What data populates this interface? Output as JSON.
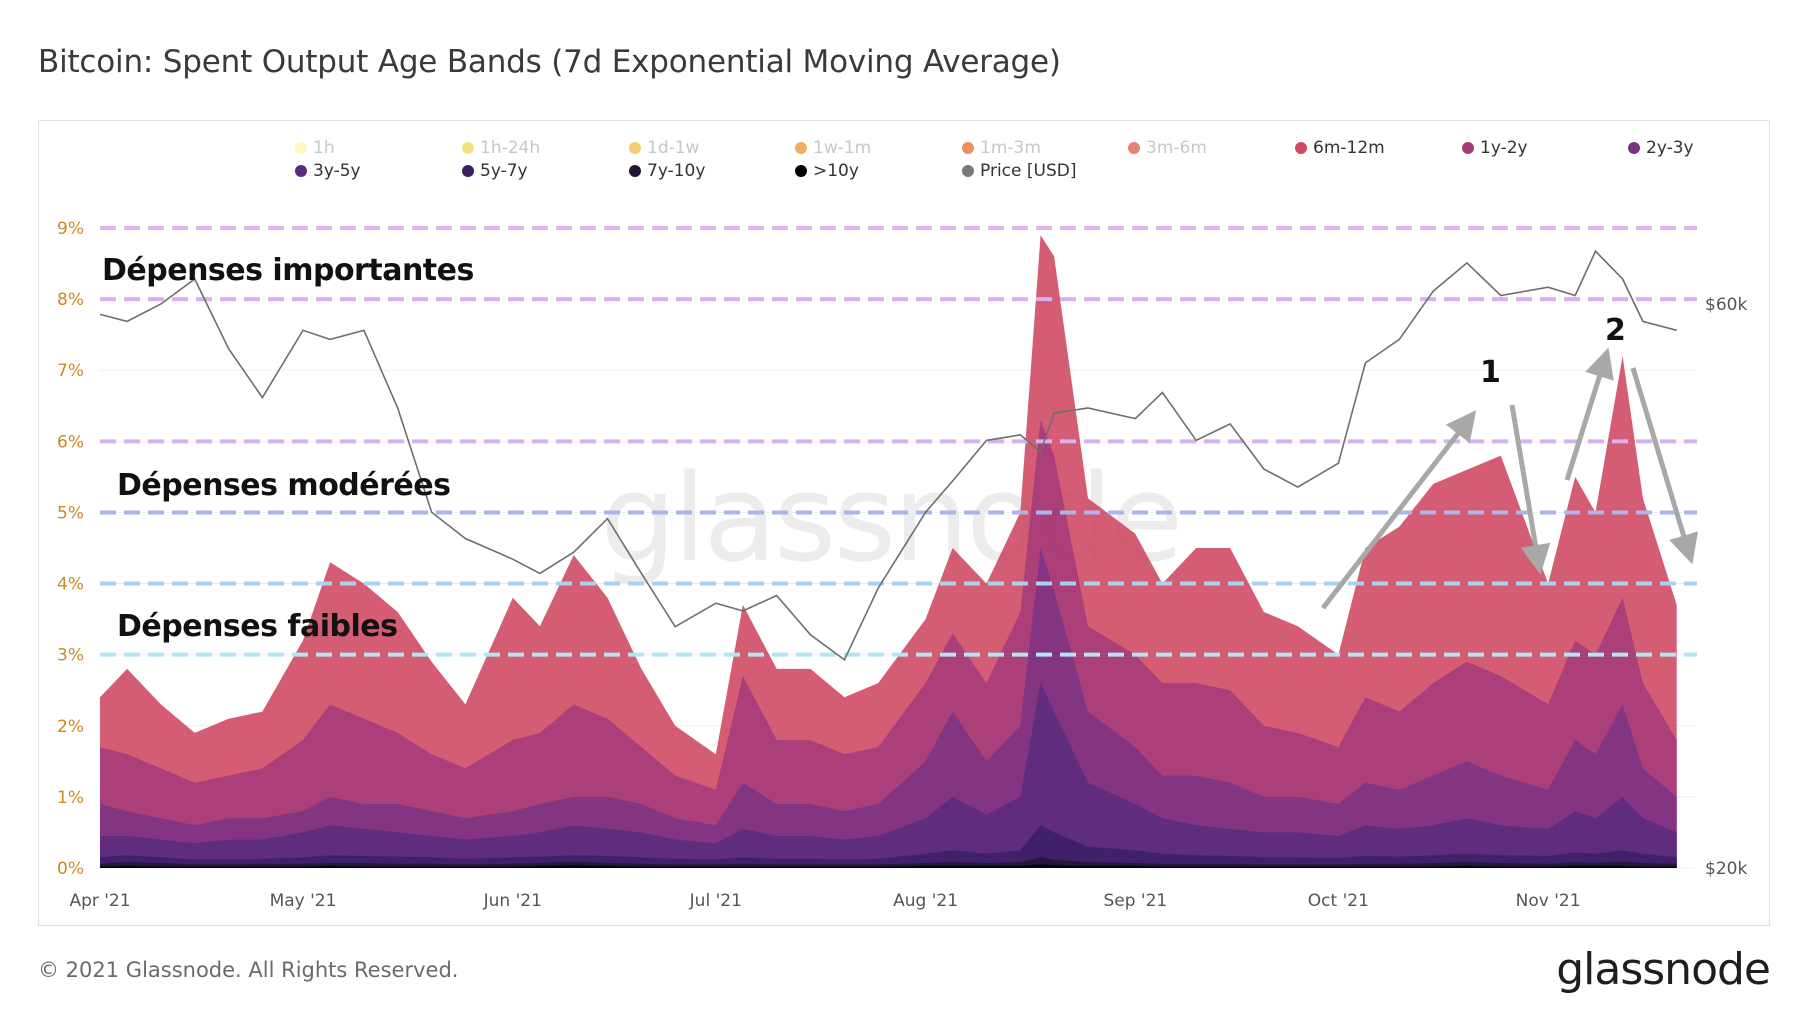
{
  "header": {
    "title": "Bitcoin: Spent Output Age Bands (7d Exponential Moving Average)"
  },
  "footer": {
    "copyright": "© 2021 Glassnode. All Rights Reserved.",
    "logo": "glassnode",
    "watermark": "glassnode"
  },
  "legend": [
    {
      "label": "1h",
      "color": "#fff2a8",
      "active": false
    },
    {
      "label": "1h-24h",
      "color": "#f7d64a",
      "active": false
    },
    {
      "label": "1d-1w",
      "color": "#f2bd3a",
      "active": false
    },
    {
      "label": "1w-1m",
      "color": "#e8922c",
      "active": false
    },
    {
      "label": "1m-3m",
      "color": "#e4682b",
      "active": false
    },
    {
      "label": "3m-6m",
      "color": "#e05a3d",
      "active": false
    },
    {
      "label": "6m-12m",
      "color": "#cf4a64",
      "active": true
    },
    {
      "label": "1y-2y",
      "color": "#a33a7a",
      "active": true
    },
    {
      "label": "2y-3y",
      "color": "#7b3484",
      "active": true
    },
    {
      "label": "3y-5y",
      "color": "#5a2a7c",
      "active": true
    },
    {
      "label": "5y-7y",
      "color": "#3c1e66",
      "active": true
    },
    {
      "label": "7y-10y",
      "color": "#221535",
      "active": true
    },
    {
      "label": ">10y",
      "color": "#000000",
      "active": true
    },
    {
      "label": "Price [USD]",
      "color": "#7a7a7a",
      "active": true
    }
  ],
  "annotations": {
    "high": "Dépenses importantes",
    "moderate": "Dépenses modérées",
    "low": "Dépenses faibles",
    "marker1": "1",
    "marker2": "2"
  },
  "chart_data": {
    "type": "area",
    "title": "Bitcoin: Spent Output Age Bands (7d Exponential Moving Average)",
    "x_ticks": [
      "Apr '21",
      "May '21",
      "Jun '21",
      "Jul '21",
      "Aug '21",
      "Sep '21",
      "Oct '21",
      "Nov '21"
    ],
    "y_left_ticks": [
      "0%",
      "1%",
      "2%",
      "3%",
      "4%",
      "5%",
      "6%",
      "7%",
      "8%",
      "9%"
    ],
    "y_left_range": [
      0,
      9.2
    ],
    "y_right_ticks": [
      "$20k",
      "$60k"
    ],
    "y_right_scale": "log",
    "threshold_lines": [
      {
        "value": 3,
        "color": "#aee6f5"
      },
      {
        "value": 4,
        "color": "#a7d3ee"
      },
      {
        "value": 5,
        "color": "#aab4ee"
      },
      {
        "value": 6,
        "color": "#d4b3ee"
      },
      {
        "value": 8,
        "color": "#dcaeee"
      },
      {
        "value": 9,
        "color": "#e3b3ee"
      }
    ],
    "dates": [
      "2021-04-01",
      "2021-04-05",
      "2021-04-10",
      "2021-04-15",
      "2021-04-20",
      "2021-04-25",
      "2021-05-01",
      "2021-05-05",
      "2021-05-10",
      "2021-05-15",
      "2021-05-20",
      "2021-05-25",
      "2021-06-01",
      "2021-06-05",
      "2021-06-10",
      "2021-06-15",
      "2021-06-20",
      "2021-06-25",
      "2021-07-01",
      "2021-07-05",
      "2021-07-10",
      "2021-07-15",
      "2021-07-20",
      "2021-07-25",
      "2021-08-01",
      "2021-08-05",
      "2021-08-10",
      "2021-08-15",
      "2021-08-18",
      "2021-08-20",
      "2021-08-25",
      "2021-09-01",
      "2021-09-05",
      "2021-09-10",
      "2021-09-15",
      "2021-09-20",
      "2021-09-25",
      "2021-10-01",
      "2021-10-05",
      "2021-10-10",
      "2021-10-15",
      "2021-10-20",
      "2021-10-25",
      "2021-11-01",
      "2021-11-05",
      "2021-11-08",
      "2021-11-12",
      "2021-11-15",
      "2021-11-20"
    ],
    "series": [
      {
        "name": "6m-12m",
        "color": "#cf4a64",
        "values": [
          2.4,
          2.8,
          2.3,
          1.9,
          2.1,
          2.2,
          3.2,
          4.3,
          4.0,
          3.6,
          2.9,
          2.3,
          3.8,
          3.4,
          4.4,
          3.8,
          2.8,
          2.0,
          1.6,
          3.7,
          2.8,
          2.8,
          2.4,
          2.6,
          3.5,
          4.5,
          4.0,
          5.0,
          8.9,
          8.6,
          5.2,
          4.7,
          4.0,
          4.5,
          4.5,
          3.6,
          3.4,
          3.0,
          4.5,
          4.8,
          5.4,
          5.6,
          5.8,
          4.0,
          5.5,
          5.0,
          7.2,
          5.2,
          3.7
        ]
      },
      {
        "name": "1y-2y",
        "color": "#a33a7a",
        "values": [
          1.7,
          1.6,
          1.4,
          1.2,
          1.3,
          1.4,
          1.8,
          2.3,
          2.1,
          1.9,
          1.6,
          1.4,
          1.8,
          1.9,
          2.3,
          2.1,
          1.7,
          1.3,
          1.1,
          2.7,
          1.8,
          1.8,
          1.6,
          1.7,
          2.6,
          3.3,
          2.6,
          3.6,
          6.3,
          5.8,
          3.4,
          3.0,
          2.6,
          2.6,
          2.5,
          2.0,
          1.9,
          1.7,
          2.4,
          2.2,
          2.6,
          2.9,
          2.7,
          2.3,
          3.2,
          3.0,
          3.8,
          2.6,
          1.8
        ]
      },
      {
        "name": "2y-3y",
        "color": "#7b3484",
        "values": [
          0.9,
          0.8,
          0.7,
          0.6,
          0.7,
          0.7,
          0.8,
          1.0,
          0.9,
          0.9,
          0.8,
          0.7,
          0.8,
          0.9,
          1.0,
          1.0,
          0.9,
          0.7,
          0.6,
          1.2,
          0.9,
          0.9,
          0.8,
          0.9,
          1.5,
          2.2,
          1.5,
          2.0,
          4.5,
          3.9,
          2.2,
          1.7,
          1.3,
          1.3,
          1.2,
          1.0,
          1.0,
          0.9,
          1.2,
          1.1,
          1.3,
          1.5,
          1.3,
          1.1,
          1.8,
          1.6,
          2.3,
          1.4,
          1.0
        ]
      },
      {
        "name": "3y-5y",
        "color": "#5a2a7c",
        "values": [
          0.45,
          0.45,
          0.4,
          0.35,
          0.4,
          0.4,
          0.5,
          0.6,
          0.55,
          0.5,
          0.45,
          0.4,
          0.45,
          0.5,
          0.6,
          0.55,
          0.5,
          0.4,
          0.35,
          0.55,
          0.45,
          0.45,
          0.4,
          0.45,
          0.7,
          1.0,
          0.75,
          1.0,
          2.6,
          2.2,
          1.2,
          0.9,
          0.7,
          0.6,
          0.55,
          0.5,
          0.5,
          0.45,
          0.6,
          0.55,
          0.6,
          0.7,
          0.6,
          0.55,
          0.8,
          0.7,
          1.0,
          0.7,
          0.5
        ]
      },
      {
        "name": "5y-7y",
        "color": "#3c1e66",
        "values": [
          0.15,
          0.18,
          0.15,
          0.12,
          0.12,
          0.13,
          0.15,
          0.18,
          0.17,
          0.16,
          0.15,
          0.13,
          0.15,
          0.16,
          0.18,
          0.17,
          0.15,
          0.13,
          0.12,
          0.15,
          0.13,
          0.13,
          0.12,
          0.13,
          0.2,
          0.25,
          0.2,
          0.25,
          0.6,
          0.5,
          0.3,
          0.25,
          0.2,
          0.18,
          0.17,
          0.15,
          0.15,
          0.14,
          0.17,
          0.16,
          0.18,
          0.2,
          0.18,
          0.17,
          0.22,
          0.2,
          0.25,
          0.2,
          0.15
        ]
      },
      {
        "name": "7y-10y",
        "color": "#221535",
        "values": [
          0.06,
          0.08,
          0.07,
          0.05,
          0.05,
          0.06,
          0.06,
          0.07,
          0.07,
          0.06,
          0.06,
          0.05,
          0.06,
          0.07,
          0.09,
          0.07,
          0.06,
          0.05,
          0.05,
          0.06,
          0.05,
          0.05,
          0.05,
          0.05,
          0.07,
          0.08,
          0.07,
          0.08,
          0.15,
          0.12,
          0.08,
          0.07,
          0.06,
          0.06,
          0.06,
          0.05,
          0.05,
          0.05,
          0.06,
          0.06,
          0.07,
          0.08,
          0.07,
          0.06,
          0.08,
          0.07,
          0.09,
          0.07,
          0.06
        ]
      },
      {
        "name": ">10y",
        "color": "#000000",
        "values": [
          0.02,
          0.03,
          0.02,
          0.02,
          0.02,
          0.02,
          0.02,
          0.03,
          0.02,
          0.02,
          0.02,
          0.02,
          0.02,
          0.03,
          0.04,
          0.03,
          0.02,
          0.02,
          0.02,
          0.02,
          0.02,
          0.02,
          0.02,
          0.02,
          0.03,
          0.03,
          0.03,
          0.03,
          0.05,
          0.04,
          0.03,
          0.03,
          0.02,
          0.02,
          0.02,
          0.02,
          0.02,
          0.02,
          0.02,
          0.02,
          0.02,
          0.03,
          0.02,
          0.02,
          0.03,
          0.03,
          0.03,
          0.02,
          0.02
        ]
      }
    ],
    "price": {
      "name": "Price [USD]",
      "color": "#6e6e6e",
      "values": [
        58800,
        58000,
        60000,
        63000,
        55000,
        50000,
        57000,
        56000,
        57000,
        49000,
        40000,
        38000,
        36500,
        35500,
        37000,
        39500,
        35500,
        32000,
        33500,
        33000,
        34000,
        31500,
        30000,
        34500,
        40000,
        42500,
        46000,
        46500,
        45000,
        48500,
        49000,
        48000,
        50500,
        46000,
        47500,
        43500,
        42000,
        44000,
        53500,
        56000,
        61500,
        65000,
        61000,
        62000,
        61000,
        66500,
        63000,
        58000,
        57000
      ]
    }
  }
}
